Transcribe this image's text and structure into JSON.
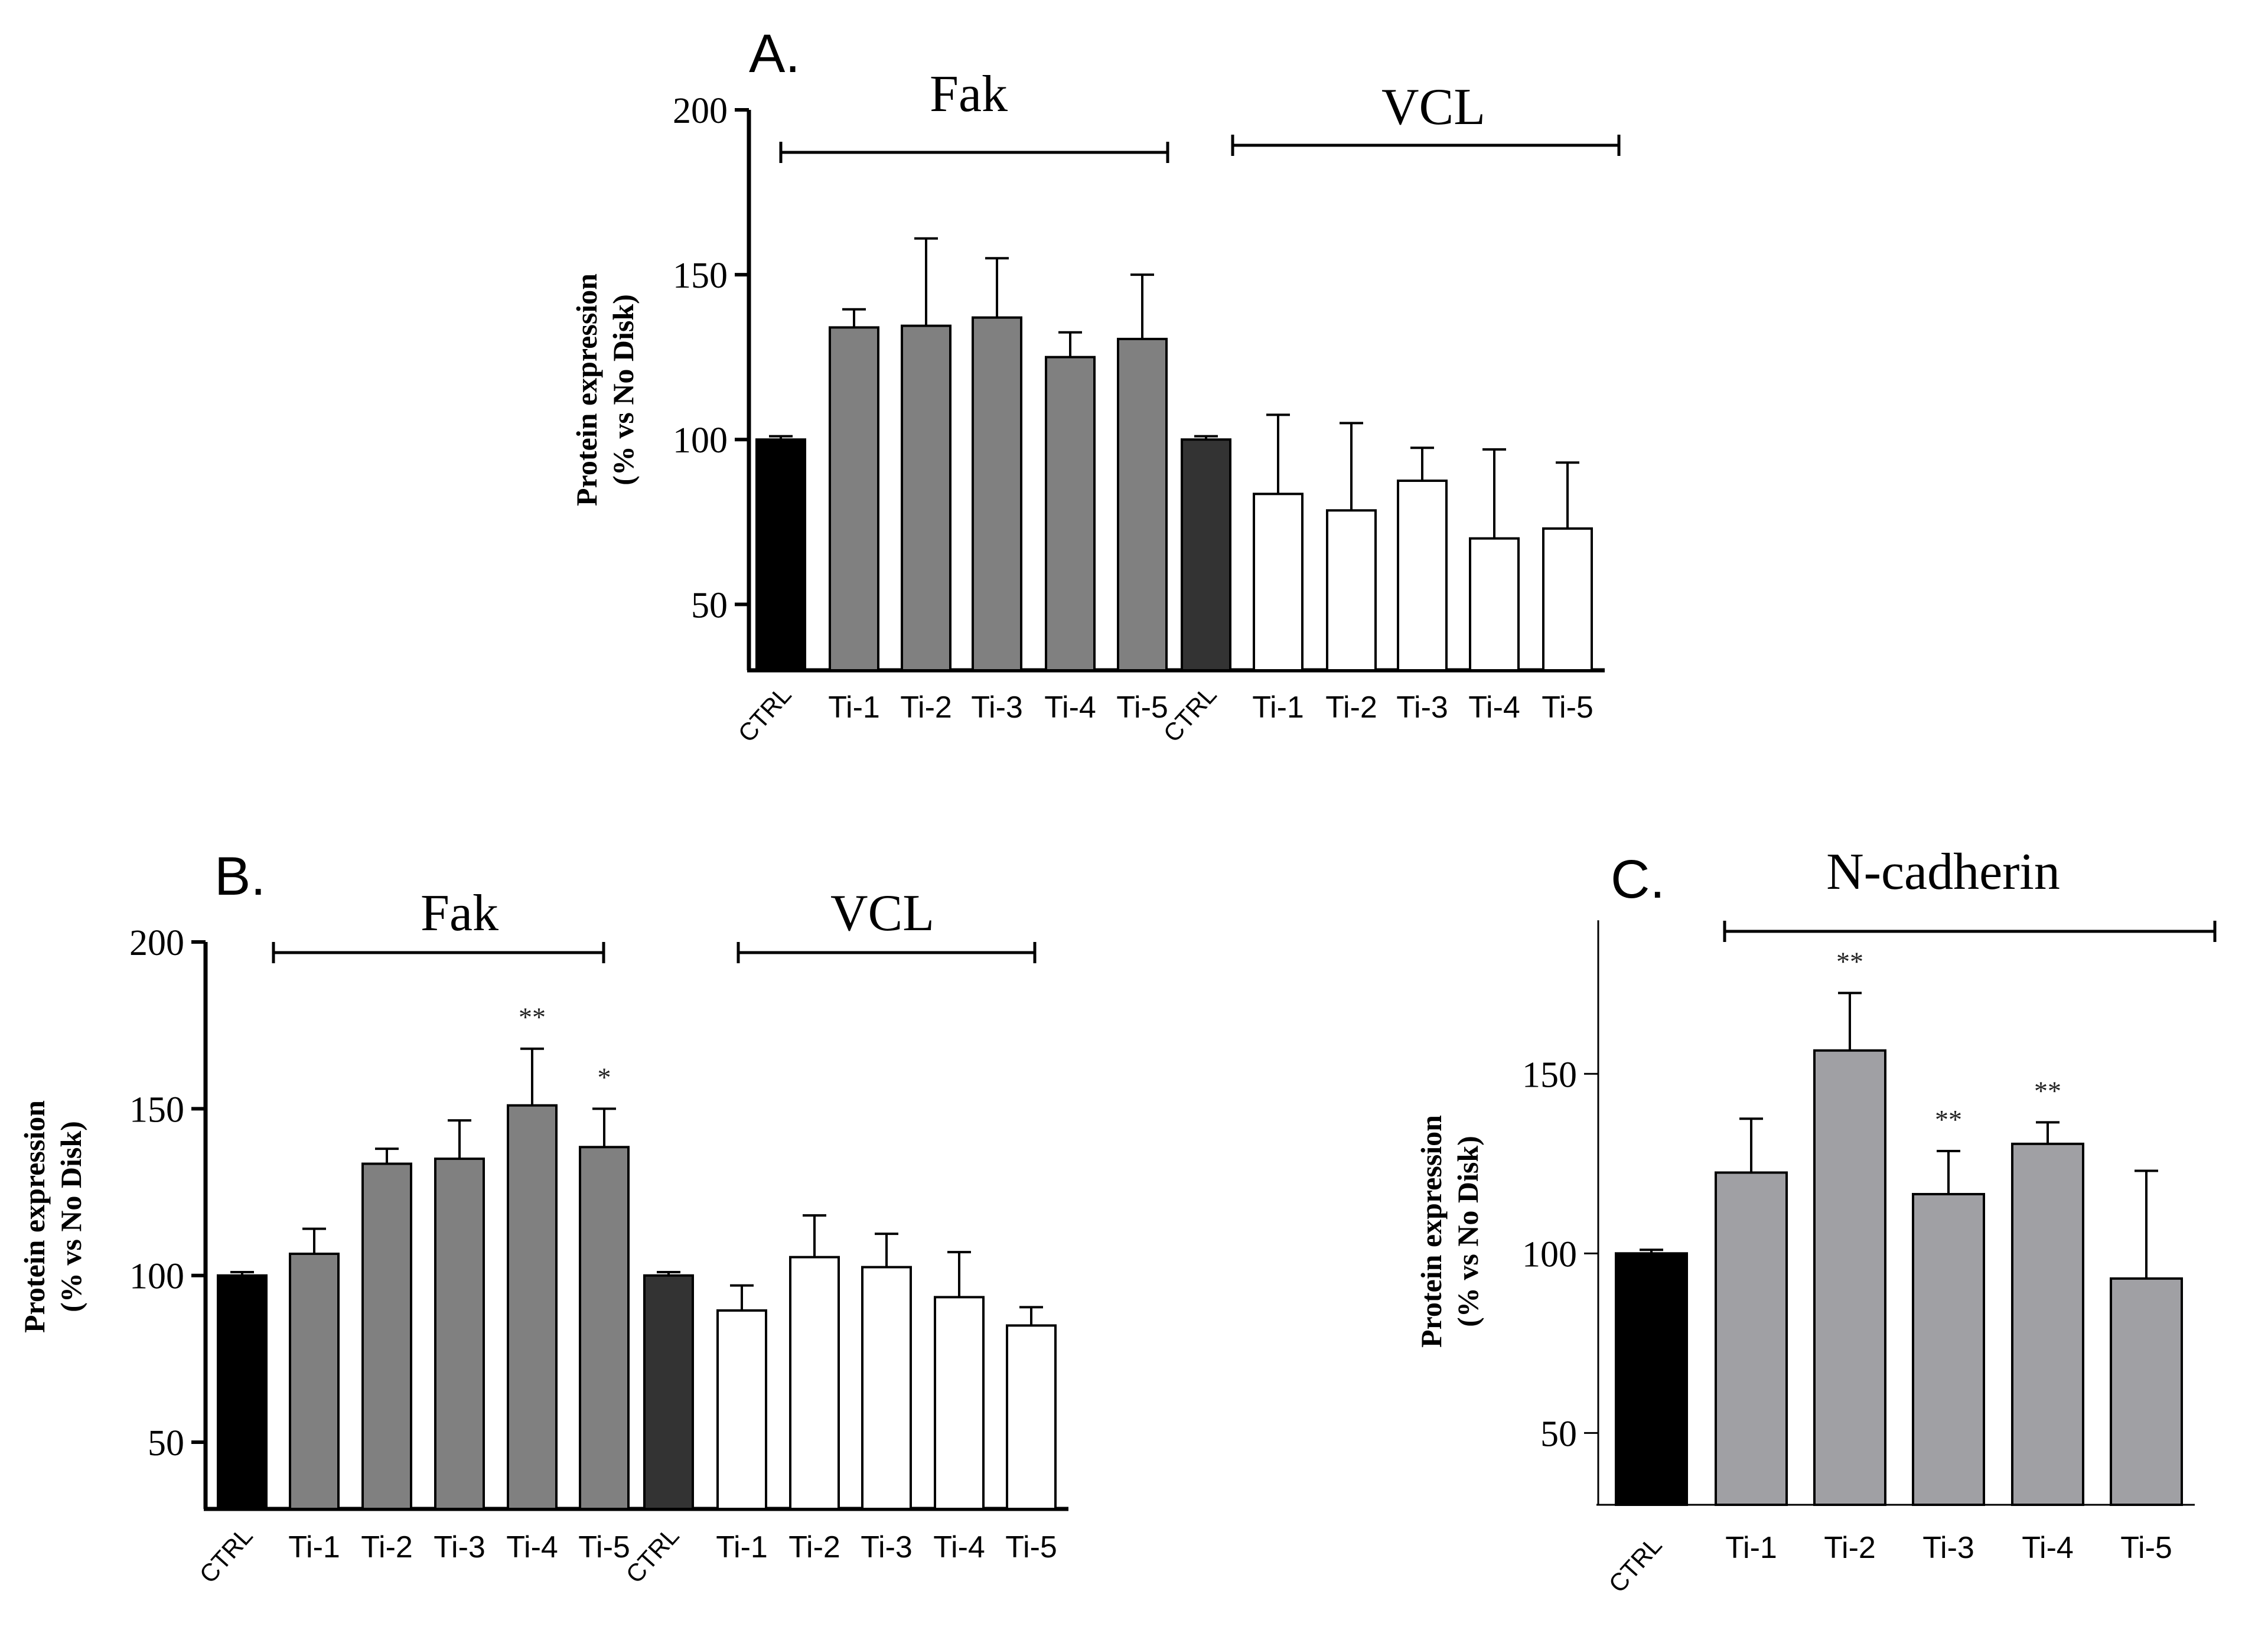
{
  "chart_data": [
    {
      "panel": "A.",
      "type": "bar",
      "ylabel_line1": "Protein expression",
      "ylabel_line2": "(% vs No Disk)",
      "ylim": [
        30,
        200
      ],
      "yticks": [
        50,
        100,
        150,
        200
      ],
      "groups": [
        {
          "label": "Fak",
          "categories": [
            "CTRL",
            "Ti-1",
            "Ti-2",
            "Ti-3",
            "Ti-4",
            "Ti-5"
          ],
          "values": [
            100,
            134,
            134.5,
            137,
            125,
            130.5
          ],
          "errors": [
            1,
            5.5,
            26.5,
            18,
            7.5,
            19.5
          ],
          "significance": [
            "",
            "",
            "",
            "",
            "",
            ""
          ],
          "fills": [
            "#000000",
            "#808080",
            "#808080",
            "#808080",
            "#808080",
            "#808080"
          ]
        },
        {
          "label": "VCL",
          "categories": [
            "CTRL",
            "Ti-1",
            "Ti-2",
            "Ti-3",
            "Ti-4",
            "Ti-5"
          ],
          "values": [
            100,
            83.5,
            78.5,
            87.5,
            70,
            73
          ],
          "errors": [
            1,
            24,
            26.5,
            10,
            27,
            20
          ],
          "significance": [
            "",
            "",
            "",
            "",
            "",
            ""
          ],
          "fills": [
            "#333333",
            "#ffffff",
            "#ffffff",
            "#ffffff",
            "#ffffff",
            "#ffffff"
          ]
        }
      ]
    },
    {
      "panel": "B.",
      "type": "bar",
      "ylabel_line1": "Protein expression",
      "ylabel_line2": "(% vs No Disk)",
      "ylim": [
        30,
        200
      ],
      "yticks": [
        50,
        100,
        150,
        200
      ],
      "groups": [
        {
          "label": "Fak",
          "categories": [
            "CTRL",
            "Ti-1",
            "Ti-2",
            "Ti-3",
            "Ti-4",
            "Ti-5"
          ],
          "values": [
            100,
            106.5,
            133.5,
            135,
            151,
            138.5
          ],
          "errors": [
            1,
            7.5,
            4.5,
            11.5,
            17,
            11.5
          ],
          "significance": [
            "",
            "",
            "",
            "",
            "**",
            "*"
          ],
          "fills": [
            "#000000",
            "#808080",
            "#808080",
            "#808080",
            "#808080",
            "#808080"
          ]
        },
        {
          "label": "VCL",
          "categories": [
            "CTRL",
            "Ti-1",
            "Ti-2",
            "Ti-3",
            "Ti-4",
            "Ti-5"
          ],
          "values": [
            100,
            89.5,
            105.5,
            102.5,
            93.5,
            85
          ],
          "errors": [
            1,
            7.5,
            12.5,
            10,
            13.5,
            5.5
          ],
          "significance": [
            "",
            "",
            "",
            "",
            "",
            ""
          ],
          "fills": [
            "#333333",
            "#ffffff",
            "#ffffff",
            "#ffffff",
            "#ffffff",
            "#ffffff"
          ]
        }
      ]
    },
    {
      "panel": "C.",
      "type": "bar",
      "ylabel_line1": "Protein expression",
      "ylabel_line2": "(% vs No Disk)",
      "ylim": [
        30,
        190
      ],
      "yticks": [
        50,
        100,
        150
      ],
      "groups": [
        {
          "label": "N-cadherin",
          "categories": [
            "CTRL",
            "Ti-1",
            "Ti-2",
            "Ti-3",
            "Ti-4",
            "Ti-5"
          ],
          "values": [
            100,
            122.5,
            156.5,
            116.5,
            130.5,
            93
          ],
          "errors": [
            1,
            15,
            16,
            12,
            6,
            30
          ],
          "significance": [
            "",
            "",
            "**",
            "**",
            "**",
            ""
          ],
          "fills": [
            "#000000",
            "#a0a0a4",
            "#a0a0a4",
            "#a0a0a4",
            "#a0a0a4",
            "#a0a0a4"
          ]
        }
      ]
    }
  ]
}
